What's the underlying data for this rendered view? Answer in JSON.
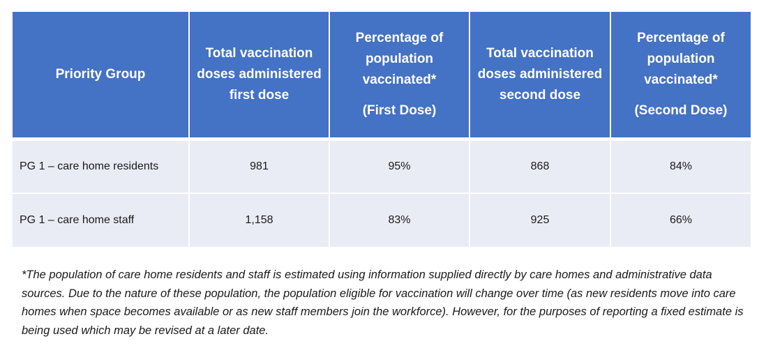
{
  "table": {
    "headers": [
      {
        "main": "Priority Group",
        "sub": ""
      },
      {
        "main": "Total vaccination doses administered first dose",
        "sub": ""
      },
      {
        "main": "Percentage of population vaccinated*",
        "sub": "(First Dose)"
      },
      {
        "main": "Total vaccination doses administered second dose",
        "sub": ""
      },
      {
        "main": "Percentage of population vaccinated*",
        "sub": "(Second Dose)"
      }
    ],
    "rows": [
      {
        "group": "PG 1 – care home residents",
        "first_dose_total": "981",
        "first_dose_pct": "95%",
        "second_dose_total": "868",
        "second_dose_pct": "84%"
      },
      {
        "group": "PG 1 – care home staff",
        "first_dose_total": "1,158",
        "first_dose_pct": "83%",
        "second_dose_total": "925",
        "second_dose_pct": "66%"
      }
    ]
  },
  "footnote": "*The population of care home residents and staff is estimated using information supplied directly by care homes and administrative data sources. Due to the nature of these population, the population eligible for vaccination will change over time (as new residents move into care homes when space becomes available or as new staff members join the workforce). However, for the purposes of reporting a fixed estimate is being used which may be revised at a later date.",
  "colors": {
    "header_bg": "#4472c4",
    "header_text": "#ffffff",
    "row_bg": "#e9ebf5"
  }
}
